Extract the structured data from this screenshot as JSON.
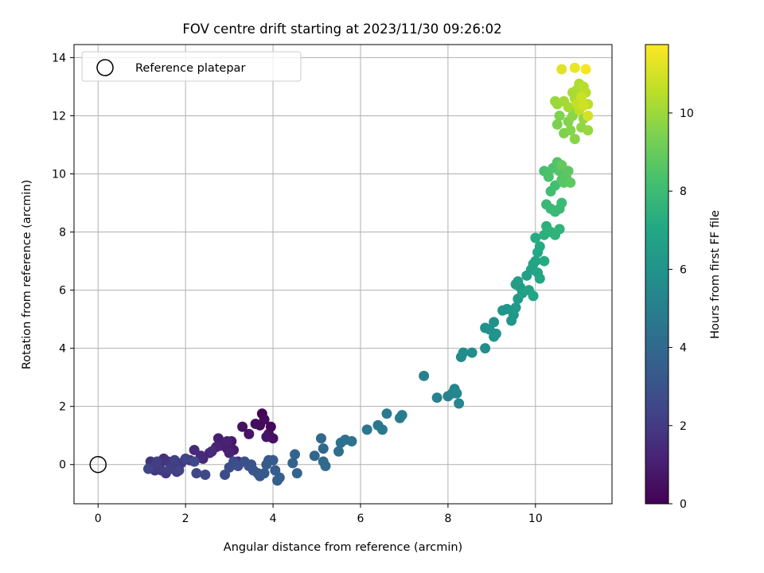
{
  "chart_data": {
    "type": "scatter",
    "title": "FOV centre drift starting at 2023/11/30 09:26:02",
    "xlabel": "Angular distance from reference (arcmin)",
    "ylabel": "Rotation from reference (arcmin)",
    "xlim": [
      -0.55,
      11.75
    ],
    "ylim": [
      -1.35,
      14.45
    ],
    "xticks": [
      0,
      2,
      4,
      6,
      8,
      10
    ],
    "xtick_labels": [
      "0",
      "2",
      "4",
      "6",
      "8",
      "10"
    ],
    "yticks": [
      0,
      2,
      4,
      6,
      8,
      10,
      12,
      14
    ],
    "ytick_labels": [
      "0",
      "2",
      "4",
      "6",
      "8",
      "10",
      "12",
      "14"
    ],
    "grid": true,
    "legend": {
      "position": "top-left",
      "entries": [
        "Reference platepar"
      ]
    },
    "reference_point": {
      "x": 0,
      "y": 0
    },
    "colorbar": {
      "label": "Hours from first FF file",
      "range": [
        0,
        11.75
      ],
      "ticks": [
        0,
        2,
        4,
        6,
        8,
        10
      ],
      "tick_labels": [
        "0",
        "2",
        "4",
        "6",
        "8",
        "10"
      ],
      "colormap": "viridis"
    },
    "points": [
      [
        3.75,
        1.75,
        0.1
      ],
      [
        3.95,
        1.3,
        0.2
      ],
      [
        3.7,
        1.35,
        0.3
      ],
      [
        3.8,
        1.55,
        0.35
      ],
      [
        3.9,
        1.05,
        0.45
      ],
      [
        4.0,
        0.9,
        0.5
      ],
      [
        3.3,
        1.3,
        0.55
      ],
      [
        3.45,
        1.05,
        0.6
      ],
      [
        3.85,
        0.95,
        0.65
      ],
      [
        3.6,
        1.4,
        0.4
      ],
      [
        3.05,
        0.8,
        0.8
      ],
      [
        3.1,
        0.5,
        0.9
      ],
      [
        2.95,
        0.55,
        0.95
      ],
      [
        2.75,
        0.9,
        1.0
      ],
      [
        2.8,
        0.65,
        1.05
      ],
      [
        2.95,
        0.8,
        1.1
      ],
      [
        3.0,
        0.4,
        1.15
      ],
      [
        2.7,
        0.6,
        1.2
      ],
      [
        2.55,
        0.4,
        1.25
      ],
      [
        2.4,
        0.2,
        1.3
      ],
      [
        2.2,
        0.5,
        1.35
      ],
      [
        2.6,
        0.45,
        1.4
      ],
      [
        2.35,
        0.3,
        1.45
      ],
      [
        2.1,
        0.15,
        1.5
      ],
      [
        3.2,
        0.1,
        1.55
      ],
      [
        1.5,
        0.2,
        1.6
      ],
      [
        1.4,
        -0.05,
        1.65
      ],
      [
        1.2,
        0.1,
        1.7
      ],
      [
        1.3,
        -0.2,
        1.75
      ],
      [
        1.6,
        0.1,
        1.8
      ],
      [
        1.55,
        -0.3,
        1.85
      ],
      [
        1.7,
        0.0,
        1.9
      ],
      [
        1.8,
        -0.25,
        1.95
      ],
      [
        1.9,
        0.05,
        2.0
      ],
      [
        1.25,
        -0.1,
        2.05
      ],
      [
        1.45,
        -0.2,
        2.1
      ],
      [
        1.35,
        0.1,
        2.15
      ],
      [
        1.65,
        -0.15,
        2.2
      ],
      [
        1.75,
        0.15,
        2.25
      ],
      [
        1.85,
        -0.2,
        2.3
      ],
      [
        2.0,
        0.2,
        2.35
      ],
      [
        1.15,
        -0.15,
        2.4
      ],
      [
        2.25,
        -0.3,
        2.5
      ],
      [
        2.2,
        0.1,
        2.55
      ],
      [
        2.45,
        -0.35,
        2.6
      ],
      [
        2.9,
        -0.35,
        2.7
      ],
      [
        3.0,
        -0.1,
        2.75
      ],
      [
        3.1,
        0.1,
        2.8
      ],
      [
        3.2,
        -0.05,
        2.85
      ],
      [
        3.35,
        0.1,
        2.9
      ],
      [
        3.45,
        -0.05,
        2.95
      ],
      [
        3.5,
        0.0,
        3.0
      ],
      [
        3.55,
        -0.2,
        3.1
      ],
      [
        3.65,
        -0.3,
        3.15
      ],
      [
        3.7,
        -0.4,
        3.2
      ],
      [
        3.8,
        -0.3,
        3.25
      ],
      [
        3.9,
        0.15,
        3.3
      ],
      [
        4.0,
        0.15,
        3.35
      ],
      [
        3.85,
        0.0,
        3.4
      ],
      [
        4.05,
        -0.2,
        3.45
      ],
      [
        4.1,
        -0.55,
        3.5
      ],
      [
        4.15,
        -0.45,
        3.55
      ],
      [
        4.45,
        0.05,
        3.7
      ],
      [
        4.5,
        0.35,
        3.75
      ],
      [
        4.55,
        -0.3,
        3.8
      ],
      [
        4.95,
        0.3,
        3.9
      ],
      [
        5.1,
        0.9,
        3.95
      ],
      [
        5.15,
        0.55,
        4.0
      ],
      [
        5.15,
        0.1,
        4.05
      ],
      [
        5.2,
        -0.05,
        4.1
      ],
      [
        5.5,
        0.45,
        4.3
      ],
      [
        5.55,
        0.75,
        4.35
      ],
      [
        5.65,
        0.85,
        4.4
      ],
      [
        5.8,
        0.8,
        4.45
      ],
      [
        6.15,
        1.2,
        4.6
      ],
      [
        6.4,
        1.35,
        4.65
      ],
      [
        6.5,
        1.2,
        4.7
      ],
      [
        6.6,
        1.75,
        4.8
      ],
      [
        6.9,
        1.6,
        4.85
      ],
      [
        6.95,
        1.7,
        4.9
      ],
      [
        7.45,
        3.05,
        5.1
      ],
      [
        7.75,
        2.3,
        5.15
      ],
      [
        8.0,
        2.35,
        5.2
      ],
      [
        8.1,
        2.45,
        5.25
      ],
      [
        8.15,
        2.6,
        5.3
      ],
      [
        8.2,
        2.45,
        5.35
      ],
      [
        8.25,
        2.1,
        5.4
      ],
      [
        8.3,
        3.7,
        5.6
      ],
      [
        8.35,
        3.85,
        5.65
      ],
      [
        8.55,
        3.85,
        5.7
      ],
      [
        8.85,
        4.0,
        5.8
      ],
      [
        8.85,
        4.7,
        5.85
      ],
      [
        8.95,
        4.65,
        5.9
      ],
      [
        9.05,
        4.9,
        5.95
      ],
      [
        9.1,
        4.5,
        6.0
      ],
      [
        9.05,
        4.4,
        6.05
      ],
      [
        9.25,
        5.3,
        6.1
      ],
      [
        9.35,
        5.35,
        6.15
      ],
      [
        9.45,
        4.95,
        6.2
      ],
      [
        9.5,
        5.15,
        6.25
      ],
      [
        9.55,
        5.4,
        6.35
      ],
      [
        9.6,
        5.7,
        6.4
      ],
      [
        9.65,
        6.1,
        6.45
      ],
      [
        9.55,
        6.2,
        6.5
      ],
      [
        9.6,
        6.3,
        6.55
      ],
      [
        9.7,
        5.9,
        6.6
      ],
      [
        9.8,
        6.5,
        6.65
      ],
      [
        9.9,
        6.7,
        6.7
      ],
      [
        9.85,
        6.0,
        6.75
      ],
      [
        9.95,
        6.9,
        6.8
      ],
      [
        10.0,
        7.0,
        6.85
      ],
      [
        10.05,
        6.6,
        6.9
      ],
      [
        9.95,
        5.8,
        6.95
      ],
      [
        10.1,
        6.4,
        7.0
      ],
      [
        10.05,
        7.3,
        7.05
      ],
      [
        10.1,
        7.5,
        7.1
      ],
      [
        10.2,
        7.0,
        7.15
      ],
      [
        10.0,
        7.8,
        7.2
      ],
      [
        10.2,
        7.9,
        7.4
      ],
      [
        10.25,
        8.2,
        7.45
      ],
      [
        10.35,
        8.0,
        7.5
      ],
      [
        10.45,
        7.9,
        7.55
      ],
      [
        10.55,
        8.1,
        7.6
      ],
      [
        10.25,
        8.95,
        7.8
      ],
      [
        10.35,
        8.8,
        7.85
      ],
      [
        10.45,
        8.7,
        7.9
      ],
      [
        10.55,
        8.8,
        7.95
      ],
      [
        10.6,
        9.0,
        8.0
      ],
      [
        10.35,
        9.4,
        8.1
      ],
      [
        10.45,
        9.6,
        8.15
      ],
      [
        10.2,
        10.1,
        8.3
      ],
      [
        10.3,
        9.9,
        8.35
      ],
      [
        10.4,
        10.2,
        8.4
      ],
      [
        10.5,
        10.4,
        8.5
      ],
      [
        10.55,
        10.1,
        8.55
      ],
      [
        10.6,
        9.8,
        8.6
      ],
      [
        10.65,
        9.7,
        8.65
      ],
      [
        10.7,
        9.9,
        8.7
      ],
      [
        10.75,
        10.1,
        8.75
      ],
      [
        10.8,
        9.7,
        8.8
      ],
      [
        10.6,
        10.3,
        8.9
      ],
      [
        10.5,
        11.7,
        9.4
      ],
      [
        10.55,
        12.0,
        9.45
      ],
      [
        10.65,
        11.4,
        9.5
      ],
      [
        10.75,
        11.8,
        9.55
      ],
      [
        10.8,
        11.5,
        9.6
      ],
      [
        10.9,
        11.2,
        9.65
      ],
      [
        10.85,
        12.0,
        9.7
      ],
      [
        10.95,
        12.2,
        9.75
      ],
      [
        11.05,
        11.6,
        9.8
      ],
      [
        11.1,
        11.9,
        9.85
      ],
      [
        11.2,
        11.5,
        9.9
      ],
      [
        10.45,
        12.5,
        9.95
      ],
      [
        10.5,
        12.4,
        10.0
      ],
      [
        10.65,
        12.5,
        10.1
      ],
      [
        10.75,
        12.3,
        10.15
      ],
      [
        10.85,
        12.8,
        10.2
      ],
      [
        10.9,
        12.6,
        10.25
      ],
      [
        10.95,
        12.9,
        10.3
      ],
      [
        11.0,
        13.1,
        10.35
      ],
      [
        11.05,
        12.5,
        10.4
      ],
      [
        11.1,
        13.0,
        10.45
      ],
      [
        11.15,
        12.8,
        10.5
      ],
      [
        11.2,
        12.4,
        10.55
      ],
      [
        11.0,
        12.2,
        10.6
      ],
      [
        10.95,
        12.4,
        10.7
      ],
      [
        11.05,
        12.65,
        10.8
      ],
      [
        11.1,
        12.35,
        10.9
      ],
      [
        11.2,
        12.0,
        11.0
      ],
      [
        10.6,
        13.6,
        11.2
      ],
      [
        10.9,
        13.65,
        11.4
      ],
      [
        11.15,
        13.6,
        11.6
      ]
    ]
  }
}
